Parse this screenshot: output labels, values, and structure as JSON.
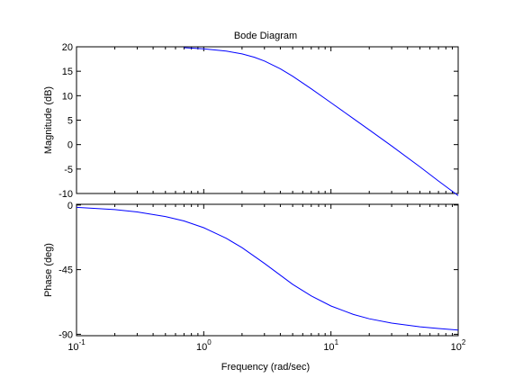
{
  "chart_data": {
    "type": "line",
    "title": "Bode Diagram",
    "xlabel": "Frequency  (rad/sec)",
    "x_scale": "log",
    "xlim": [
      0.1,
      100
    ],
    "x_ticks": [
      {
        "value": 0.1,
        "base": "10",
        "exp": "-1"
      },
      {
        "value": 1,
        "base": "10",
        "exp": "0"
      },
      {
        "value": 10,
        "base": "10",
        "exp": "1"
      },
      {
        "value": 100,
        "base": "10",
        "exp": "2"
      }
    ],
    "grid": false,
    "line_color": "#0000ff",
    "panels": [
      {
        "id": "magnitude",
        "ylabel": "Magnitude (dB)",
        "ylim": [
          -10,
          20
        ],
        "y_ticks": [
          20,
          15,
          10,
          5,
          0,
          -5,
          -10
        ],
        "y_tick_labels": [
          "20",
          "15",
          "10",
          "5",
          "0",
          "-5",
          "-10"
        ],
        "x": [
          0.7,
          1.0,
          1.5,
          2.0,
          2.5,
          3.0,
          4.0,
          5.0,
          7.0,
          10.0,
          15.0,
          20.0,
          30.0,
          50.0,
          70.0,
          100.0
        ],
        "y": [
          19.81,
          19.59,
          19.14,
          18.55,
          17.86,
          17.1,
          15.51,
          13.98,
          11.4,
          8.57,
          5.31,
          3.01,
          -0.29,
          -4.56,
          -7.45,
          -10.45
        ]
      },
      {
        "id": "phase",
        "ylabel": "Phase (deg)",
        "ylim": [
          -91,
          0.5
        ],
        "y_ticks": [
          0,
          -45,
          -90
        ],
        "y_tick_labels": [
          "0",
          "-45",
          "-90"
        ],
        "x": [
          0.1,
          0.2,
          0.3,
          0.5,
          0.7,
          1.0,
          1.5,
          2.0,
          3.0,
          5.0,
          7.0,
          10.0,
          15.0,
          20.0,
          30.0,
          50.0,
          70.0,
          100.0
        ],
        "y": [
          -1.6,
          -3.2,
          -4.8,
          -8.0,
          -11.1,
          -15.8,
          -23.1,
          -29.7,
          -40.7,
          -55.2,
          -63.3,
          -70.3,
          -76.2,
          -79.2,
          -82.2,
          -84.8,
          -86.0,
          -87.1
        ]
      }
    ]
  }
}
